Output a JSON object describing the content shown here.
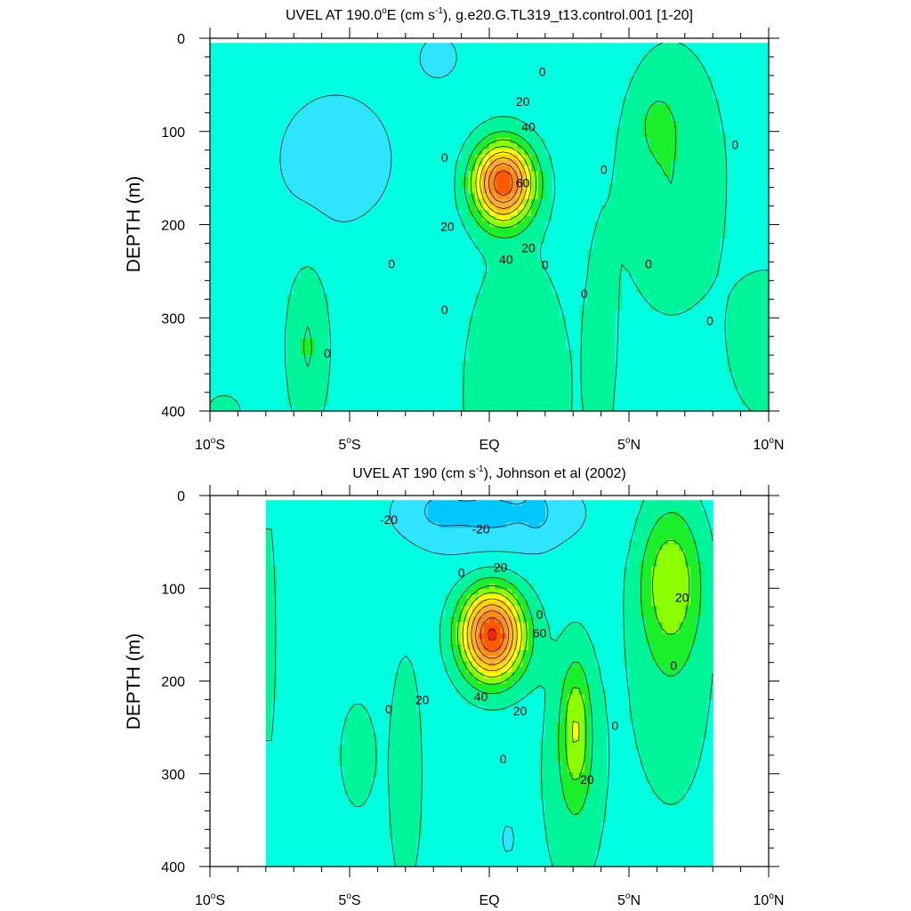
{
  "chart_data": [
    {
      "type": "heatmap",
      "title_parts": [
        "UVEL AT 190.0",
        "o",
        "E (cm s",
        "-1",
        "), g.e20.G.TL319_t13.control.001 [1-20]"
      ],
      "ylabel": "DEPTH (m)",
      "xlim": [
        -10,
        10
      ],
      "ylim": [
        400,
        0
      ],
      "x_ticks": [
        {
          "v": -10,
          "main": "10",
          "deg": "o",
          "hem": "S"
        },
        {
          "v": -5,
          "main": "5",
          "deg": "o",
          "hem": "S"
        },
        {
          "v": 0,
          "main": "EQ",
          "deg": "",
          "hem": ""
        },
        {
          "v": 5,
          "main": "5",
          "deg": "o",
          "hem": "N"
        },
        {
          "v": 10,
          "main": "10",
          "deg": "o",
          "hem": "N"
        }
      ],
      "y_ticks": [
        {
          "v": 0,
          "label": "0"
        },
        {
          "v": 100,
          "label": "100"
        },
        {
          "v": 200,
          "label": "200"
        },
        {
          "v": 300,
          "label": "300"
        },
        {
          "v": 400,
          "label": "400"
        }
      ],
      "data_extent": {
        "lon": [
          -10,
          10
        ],
        "depth": [
          5,
          400
        ]
      },
      "background_value": -5,
      "jet": {
        "lon": 0.5,
        "depth": 155,
        "width_deg": 1.05,
        "depth_scale": 42,
        "core": 77
      },
      "features": [
        {
          "lon": -6.5,
          "depth": 330,
          "width_deg": 0.75,
          "depth_scale": 90,
          "amp": 16
        },
        {
          "lon": -9.5,
          "depth": 400,
          "width_deg": 0.7,
          "depth_scale": 20,
          "amp": 10
        },
        {
          "lon": 1.0,
          "depth": 380,
          "width_deg": 1.9,
          "depth_scale": 150,
          "amp": 14
        },
        {
          "lon": 4.0,
          "depth": 330,
          "width_deg": 0.5,
          "depth_scale": 110,
          "amp": 13
        },
        {
          "lon": 6.5,
          "depth": 150,
          "width_deg": 1.9,
          "depth_scale": 140,
          "amp": 15
        },
        {
          "lon": 6.0,
          "depth": 90,
          "width_deg": 0.55,
          "depth_scale": 30,
          "amp": 9
        },
        {
          "lon": 10.0,
          "depth": 330,
          "width_deg": 1.4,
          "depth_scale": 80,
          "amp": 13
        },
        {
          "lon": -5.5,
          "depth": 130,
          "width_deg": 2.6,
          "depth_scale": 90,
          "amp": -9
        },
        {
          "lon": -1.8,
          "depth": 20,
          "width_deg": 0.9,
          "depth_scale": 30,
          "amp": -8
        }
      ],
      "contour_labels": [
        {
          "lon": 1.9,
          "depth": 36,
          "text": "0"
        },
        {
          "lon": 1.2,
          "depth": 68,
          "text": "20"
        },
        {
          "lon": 1.4,
          "depth": 95,
          "text": "40"
        },
        {
          "lon": 1.2,
          "depth": 155,
          "text": "60"
        },
        {
          "lon": -1.6,
          "depth": 128,
          "text": "0"
        },
        {
          "lon": -1.5,
          "depth": 202,
          "text": "20"
        },
        {
          "lon": 0.6,
          "depth": 237,
          "text": "40"
        },
        {
          "lon": 1.4,
          "depth": 225,
          "text": "20"
        },
        {
          "lon": 2.0,
          "depth": 243,
          "text": "0"
        },
        {
          "lon": 4.1,
          "depth": 141,
          "text": "0"
        },
        {
          "lon": 8.8,
          "depth": 114,
          "text": "0"
        },
        {
          "lon": -3.5,
          "depth": 242,
          "text": "0"
        },
        {
          "lon": 5.7,
          "depth": 242,
          "text": "0"
        },
        {
          "lon": 3.4,
          "depth": 274,
          "text": "0"
        },
        {
          "lon": -1.6,
          "depth": 291,
          "text": "0"
        },
        {
          "lon": 7.9,
          "depth": 303,
          "text": "0"
        },
        {
          "lon": -5.8,
          "depth": 338,
          "text": "0"
        }
      ]
    },
    {
      "type": "heatmap",
      "title_parts": [
        "UVEL AT 190 (cm s",
        "-1",
        "), Johnson et al (2002)"
      ],
      "ylabel": "DEPTH (m)",
      "xlim": [
        -10,
        10
      ],
      "ylim": [
        400,
        0
      ],
      "x_ticks": [
        {
          "v": -10,
          "main": "10",
          "deg": "o",
          "hem": "S"
        },
        {
          "v": -5,
          "main": "5",
          "deg": "o",
          "hem": "S"
        },
        {
          "v": 0,
          "main": "EQ",
          "deg": "",
          "hem": ""
        },
        {
          "v": 5,
          "main": "5",
          "deg": "o",
          "hem": "N"
        },
        {
          "v": 10,
          "main": "10",
          "deg": "o",
          "hem": "N"
        }
      ],
      "y_ticks": [
        {
          "v": 0,
          "label": "0"
        },
        {
          "v": 100,
          "label": "100"
        },
        {
          "v": 200,
          "label": "200"
        },
        {
          "v": 300,
          "label": "300"
        },
        {
          "v": 400,
          "label": "400"
        }
      ],
      "data_extent": {
        "lon": [
          -8,
          8
        ],
        "depth": [
          5,
          400
        ]
      },
      "background_value": -5,
      "jet": {
        "lon": 0.1,
        "depth": 150,
        "width_deg": 1.1,
        "depth_scale": 48,
        "core": 82
      },
      "features": [
        {
          "lon": -4.7,
          "depth": 280,
          "width_deg": 0.6,
          "depth_scale": 55,
          "amp": 14
        },
        {
          "lon": -7.9,
          "depth": 150,
          "width_deg": 0.3,
          "depth_scale": 150,
          "amp": 10
        },
        {
          "lon": -3.0,
          "depth": 300,
          "width_deg": 0.6,
          "depth_scale": 130,
          "amp": 13
        },
        {
          "lon": 3.1,
          "depth": 250,
          "width_deg": 0.5,
          "depth_scale": 70,
          "amp": 26
        },
        {
          "lon": 3.0,
          "depth": 300,
          "width_deg": 1.2,
          "depth_scale": 140,
          "amp": 12
        },
        {
          "lon": 6.5,
          "depth": 90,
          "width_deg": 1.1,
          "depth_scale": 80,
          "amp": 28
        },
        {
          "lon": 6.5,
          "depth": 200,
          "width_deg": 1.6,
          "depth_scale": 160,
          "amp": 10
        },
        {
          "lon": 0.0,
          "depth": 20,
          "width_deg": 3.2,
          "depth_scale": 45,
          "amp": -17
        },
        {
          "lon": 1.8,
          "depth": 15,
          "width_deg": 0.5,
          "depth_scale": 30,
          "amp": -6
        },
        {
          "lon": -2.0,
          "depth": 15,
          "width_deg": 0.8,
          "depth_scale": 25,
          "amp": -6
        },
        {
          "lon": 0.7,
          "depth": 370,
          "width_deg": 0.6,
          "depth_scale": 40,
          "amp": -6
        }
      ],
      "contour_labels": [
        {
          "lon": -3.6,
          "depth": 26,
          "text": "-20"
        },
        {
          "lon": -0.3,
          "depth": 36,
          "text": "-20"
        },
        {
          "lon": -1.0,
          "depth": 83,
          "text": "0"
        },
        {
          "lon": 0.4,
          "depth": 77,
          "text": "20"
        },
        {
          "lon": 1.8,
          "depth": 128,
          "text": "0"
        },
        {
          "lon": 1.8,
          "depth": 148,
          "text": "60"
        },
        {
          "lon": -2.4,
          "depth": 220,
          "text": "20"
        },
        {
          "lon": -0.3,
          "depth": 217,
          "text": "40"
        },
        {
          "lon": 1.1,
          "depth": 232,
          "text": "20"
        },
        {
          "lon": -3.6,
          "depth": 230,
          "text": "0"
        },
        {
          "lon": 0.5,
          "depth": 284,
          "text": "0"
        },
        {
          "lon": 3.5,
          "depth": 306,
          "text": "20"
        },
        {
          "lon": 4.5,
          "depth": 248,
          "text": "0"
        },
        {
          "lon": 6.6,
          "depth": 183,
          "text": "0"
        },
        {
          "lon": 6.9,
          "depth": 110,
          "text": "20"
        }
      ]
    }
  ],
  "colors": {
    "levels": [
      -30,
      -20,
      -10,
      0,
      10,
      20,
      30,
      40,
      50,
      60,
      70,
      80
    ],
    "palette": [
      "#0090ff",
      "#00c8ff",
      "#2ee4ff",
      "#00ffe0",
      "#00f59a",
      "#19f02a",
      "#8cff00",
      "#ffff00",
      "#ffd400",
      "#ffaa33",
      "#ff8c1a",
      "#ff5a00",
      "#ff1e00"
    ],
    "line": "#000000"
  }
}
